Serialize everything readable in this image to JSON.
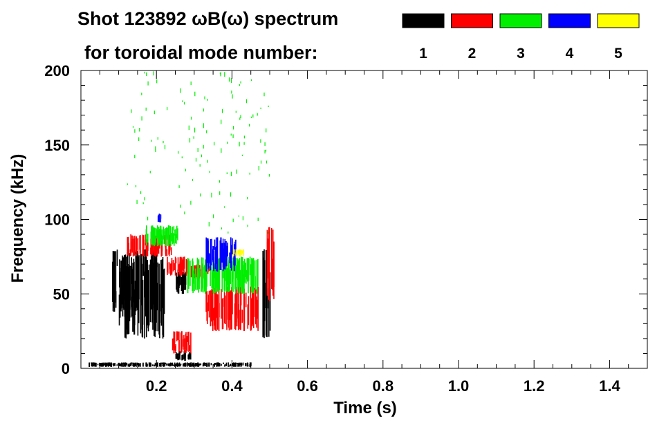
{
  "chart_data": {
    "type": "heatmap",
    "title": "Shot 123892 ωB(ω) spectrum",
    "subtitle": "for toroidal mode number:",
    "xlabel": "Time (s)",
    "ylabel": "Frequency (kHz)",
    "xlim": [
      0.0,
      1.5
    ],
    "ylim": [
      0,
      200
    ],
    "x_ticks": [
      "0.2",
      "0.4",
      "0.6",
      "0.8",
      "1.0",
      "1.2",
      "1.4"
    ],
    "y_ticks": [
      "0",
      "50",
      "100",
      "150",
      "200"
    ],
    "legend": {
      "placement": "top-right",
      "entries": [
        {
          "label": "1",
          "color": "#000000"
        },
        {
          "label": "2",
          "color": "#ff0000"
        },
        {
          "label": "3",
          "color": "#00ee00"
        },
        {
          "label": "4",
          "color": "#0000ff"
        },
        {
          "label": "5",
          "color": "#ffff00"
        }
      ]
    },
    "series": [
      {
        "name": "1",
        "color": "#000000",
        "regions": [
          {
            "t": [
              0.08,
              0.2
            ],
            "f": [
              38,
              80
            ]
          },
          {
            "t": [
              0.1,
              0.22
            ],
            "f": [
              20,
              75
            ]
          },
          {
            "t": [
              0.25,
              0.28
            ],
            "f": [
              50,
              65
            ]
          },
          {
            "t": [
              0.25,
              0.29
            ],
            "f": [
              5,
              12
            ]
          },
          {
            "t": [
              0.48,
              0.5
            ],
            "f": [
              20,
              80
            ]
          },
          {
            "t": [
              0.02,
              0.45
            ],
            "f": [
              1,
              4
            ]
          }
        ]
      },
      {
        "name": "2",
        "color": "#ff0000",
        "regions": [
          {
            "t": [
              0.12,
              0.24
            ],
            "f": [
              75,
              90
            ]
          },
          {
            "t": [
              0.22,
              0.28
            ],
            "f": [
              62,
              75
            ]
          },
          {
            "t": [
              0.33,
              0.47
            ],
            "f": [
              25,
              55
            ]
          },
          {
            "t": [
              0.29,
              0.34
            ],
            "f": [
              60,
              70
            ]
          },
          {
            "t": [
              0.49,
              0.51
            ],
            "f": [
              45,
              95
            ]
          },
          {
            "t": [
              0.24,
              0.29
            ],
            "f": [
              10,
              25
            ]
          }
        ]
      },
      {
        "name": "3",
        "color": "#00ee00",
        "regions": [
          {
            "t": [
              0.17,
              0.26
            ],
            "f": [
              82,
              96
            ]
          },
          {
            "t": [
              0.28,
              0.47
            ],
            "f": [
              50,
              75
            ]
          },
          {
            "t": [
              0.12,
              0.5
            ],
            "f": [
              90,
              200
            ]
          }
        ]
      },
      {
        "name": "4",
        "color": "#0000ff",
        "regions": [
          {
            "t": [
              0.33,
              0.41
            ],
            "f": [
              65,
              88
            ]
          },
          {
            "t": [
              0.2,
              0.21
            ],
            "f": [
              98,
              104
            ]
          }
        ]
      },
      {
        "name": "5",
        "color": "#ffff00",
        "regions": [
          {
            "t": [
              0.4,
              0.43
            ],
            "f": [
              75,
              80
            ]
          }
        ]
      }
    ]
  }
}
